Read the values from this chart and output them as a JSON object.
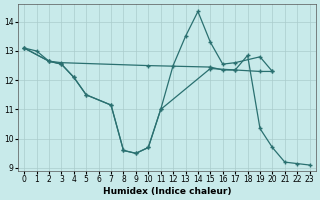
{
  "background_color": "#c8eaea",
  "grid_color": "#aacccc",
  "line_color": "#2a7070",
  "xlabel": "Humidex (Indice chaleur)",
  "xlim": [
    -0.5,
    23.5
  ],
  "ylim": [
    8.9,
    14.6
  ],
  "xticks": [
    0,
    1,
    2,
    3,
    4,
    5,
    6,
    7,
    8,
    9,
    10,
    11,
    12,
    13,
    14,
    15,
    16,
    17,
    18,
    19,
    20,
    21,
    22,
    23
  ],
  "yticks": [
    9,
    10,
    11,
    12,
    13,
    14
  ],
  "line1_x": [
    0,
    1,
    2,
    3,
    10,
    15,
    16,
    17,
    19,
    20
  ],
  "line1_y": [
    13.1,
    13.0,
    12.65,
    12.6,
    12.5,
    12.45,
    12.35,
    12.35,
    12.3,
    12.3
  ],
  "line2_x": [
    0,
    2,
    3,
    4,
    5,
    7,
    8,
    9,
    10,
    11,
    12,
    13,
    14,
    15,
    16,
    17,
    19,
    20
  ],
  "line2_y": [
    13.1,
    12.65,
    12.55,
    12.1,
    11.5,
    11.15,
    9.6,
    9.5,
    9.7,
    11.0,
    12.5,
    13.5,
    14.35,
    13.3,
    12.55,
    12.6,
    12.8,
    12.3
  ],
  "line3_x": [
    0,
    2,
    3,
    4,
    5,
    7,
    8,
    9,
    10,
    11,
    15,
    17,
    18,
    19,
    20,
    21,
    22,
    23
  ],
  "line3_y": [
    13.1,
    12.65,
    12.55,
    12.1,
    11.5,
    11.15,
    9.6,
    9.5,
    9.7,
    11.0,
    12.4,
    12.35,
    12.85,
    10.35,
    9.7,
    9.2,
    9.15,
    9.1
  ]
}
